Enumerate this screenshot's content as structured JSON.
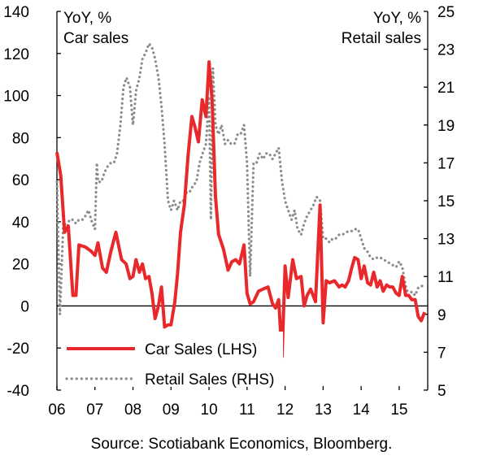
{
  "chart_data": {
    "type": "line",
    "left_axis_title_1": "YoY, %",
    "left_axis_title_2": "Car sales",
    "right_axis_title_1": "YoY, %",
    "right_axis_title_2": "Retail sales",
    "source": "Source: Scotiabank Economics, Bloomberg.",
    "x_tick_labels": [
      "06",
      "07",
      "08",
      "09",
      "10",
      "11",
      "12",
      "13",
      "14",
      "15"
    ],
    "xlim": [
      2006.0,
      2015.75
    ],
    "ylim_left": [
      -40,
      140
    ],
    "yticks_left": [
      -40,
      -20,
      0,
      20,
      40,
      60,
      80,
      100,
      120,
      140
    ],
    "ylim_right": [
      5,
      25
    ],
    "yticks_right": [
      5,
      7,
      9,
      11,
      13,
      15,
      17,
      19,
      21,
      23,
      25
    ],
    "legend_position": "bottom-left",
    "series": [
      {
        "name": "Car Sales (LHS)",
        "axis": "left",
        "color": "#e8282b",
        "style": "solid",
        "points": [
          [
            2006.0,
            73
          ],
          [
            2006.1,
            62
          ],
          [
            2006.2,
            35
          ],
          [
            2006.3,
            38
          ],
          [
            2006.42,
            5
          ],
          [
            2006.5,
            5
          ],
          [
            2006.58,
            29
          ],
          [
            2006.75,
            28
          ],
          [
            2006.9,
            26
          ],
          [
            2007.0,
            24
          ],
          [
            2007.08,
            30
          ],
          [
            2007.2,
            18
          ],
          [
            2007.3,
            16
          ],
          [
            2007.42,
            26
          ],
          [
            2007.55,
            35
          ],
          [
            2007.7,
            22
          ],
          [
            2007.82,
            20
          ],
          [
            2007.92,
            13
          ],
          [
            2008.0,
            14
          ],
          [
            2008.08,
            22
          ],
          [
            2008.17,
            16
          ],
          [
            2008.25,
            20
          ],
          [
            2008.33,
            13
          ],
          [
            2008.42,
            14
          ],
          [
            2008.5,
            6
          ],
          [
            2008.58,
            -6
          ],
          [
            2008.67,
            0
          ],
          [
            2008.75,
            9
          ],
          [
            2008.83,
            -10
          ],
          [
            2008.92,
            -9
          ],
          [
            2009.0,
            -9
          ],
          [
            2009.1,
            2
          ],
          [
            2009.17,
            15
          ],
          [
            2009.25,
            35
          ],
          [
            2009.35,
            48
          ],
          [
            2009.45,
            72
          ],
          [
            2009.55,
            90
          ],
          [
            2009.63,
            85
          ],
          [
            2009.72,
            78
          ],
          [
            2009.82,
            98
          ],
          [
            2009.92,
            90
          ],
          [
            2010.0,
            116
          ],
          [
            2010.08,
            98
          ],
          [
            2010.17,
            52
          ],
          [
            2010.25,
            34
          ],
          [
            2010.38,
            27
          ],
          [
            2010.5,
            17
          ],
          [
            2010.6,
            21
          ],
          [
            2010.7,
            22
          ],
          [
            2010.8,
            20
          ],
          [
            2010.92,
            29
          ],
          [
            2011.0,
            6
          ],
          [
            2011.08,
            1
          ],
          [
            2011.17,
            2
          ],
          [
            2011.3,
            7
          ],
          [
            2011.42,
            8
          ],
          [
            2011.55,
            9
          ],
          [
            2011.67,
            1
          ],
          [
            2011.75,
            -1
          ],
          [
            2011.83,
            3
          ],
          [
            2011.92,
            -24
          ],
          [
            2012.0,
            19
          ],
          [
            2012.08,
            4
          ],
          [
            2012.2,
            22
          ],
          [
            2012.3,
            13
          ],
          [
            2012.42,
            14
          ],
          [
            2012.5,
            0
          ],
          [
            2012.58,
            5
          ],
          [
            2012.67,
            8
          ],
          [
            2012.8,
            2
          ],
          [
            2012.92,
            48
          ],
          [
            2013.0,
            -8
          ],
          [
            2013.08,
            12
          ],
          [
            2013.17,
            11
          ],
          [
            2013.3,
            12
          ],
          [
            2013.42,
            9
          ],
          [
            2013.5,
            10
          ],
          [
            2013.58,
            9
          ],
          [
            2013.67,
            12
          ],
          [
            2013.75,
            18
          ],
          [
            2013.83,
            23
          ],
          [
            2013.92,
            22
          ],
          [
            2014.0,
            13
          ],
          [
            2014.08,
            19
          ],
          [
            2014.17,
            11
          ],
          [
            2014.25,
            10
          ],
          [
            2014.33,
            16
          ],
          [
            2014.42,
            9
          ],
          [
            2014.5,
            12
          ],
          [
            2014.58,
            7
          ],
          [
            2014.67,
            10
          ],
          [
            2014.75,
            9
          ],
          [
            2014.83,
            9
          ],
          [
            2014.92,
            6
          ],
          [
            2015.0,
            5
          ],
          [
            2015.08,
            14
          ],
          [
            2015.17,
            5
          ],
          [
            2015.25,
            5
          ],
          [
            2015.33,
            3
          ],
          [
            2015.42,
            3
          ],
          [
            2015.5,
            -5
          ],
          [
            2015.58,
            -7
          ],
          [
            2015.67,
            -3
          ]
        ]
      },
      {
        "name": "Retail Sales (RHS)",
        "axis": "right",
        "color": "#8c8c8c",
        "style": "dotted",
        "points": [
          [
            2006.0,
            16
          ],
          [
            2006.08,
            9
          ],
          [
            2006.17,
            14
          ],
          [
            2006.25,
            13.5
          ],
          [
            2006.33,
            14
          ],
          [
            2006.42,
            14
          ],
          [
            2006.5,
            13.8
          ],
          [
            2006.58,
            14
          ],
          [
            2006.67,
            14
          ],
          [
            2006.75,
            14.2
          ],
          [
            2006.83,
            14.5
          ],
          [
            2006.9,
            14
          ],
          [
            2007.0,
            13.5
          ],
          [
            2007.05,
            17
          ],
          [
            2007.08,
            16
          ],
          [
            2007.17,
            16
          ],
          [
            2007.25,
            16.5
          ],
          [
            2007.33,
            16.8
          ],
          [
            2007.42,
            17
          ],
          [
            2007.5,
            17
          ],
          [
            2007.58,
            17.5
          ],
          [
            2007.67,
            19
          ],
          [
            2007.75,
            21
          ],
          [
            2007.83,
            21.5
          ],
          [
            2007.92,
            21
          ],
          [
            2008.0,
            19
          ],
          [
            2008.08,
            20.8
          ],
          [
            2008.17,
            21.5
          ],
          [
            2008.25,
            22.5
          ],
          [
            2008.33,
            22.8
          ],
          [
            2008.42,
            23.3
          ],
          [
            2008.5,
            23.1
          ],
          [
            2008.58,
            22.5
          ],
          [
            2008.67,
            21.5
          ],
          [
            2008.75,
            20
          ],
          [
            2008.83,
            18
          ],
          [
            2008.92,
            15
          ],
          [
            2009.0,
            14.5
          ],
          [
            2009.08,
            15
          ],
          [
            2009.17,
            14.5
          ],
          [
            2009.25,
            15
          ],
          [
            2009.33,
            15
          ],
          [
            2009.42,
            15.5
          ],
          [
            2009.5,
            15.5
          ],
          [
            2009.58,
            15.8
          ],
          [
            2009.67,
            16
          ],
          [
            2009.75,
            17
          ],
          [
            2009.83,
            17.5
          ],
          [
            2009.92,
            18
          ],
          [
            2010.0,
            20.5
          ],
          [
            2010.05,
            14
          ],
          [
            2010.1,
            22
          ],
          [
            2010.17,
            19
          ],
          [
            2010.25,
            18.5
          ],
          [
            2010.33,
            19
          ],
          [
            2010.42,
            18
          ],
          [
            2010.5,
            18.2
          ],
          [
            2010.58,
            18
          ],
          [
            2010.67,
            18
          ],
          [
            2010.75,
            18.5
          ],
          [
            2010.83,
            18.5
          ],
          [
            2010.92,
            19
          ],
          [
            2011.0,
            17
          ],
          [
            2011.08,
            11
          ],
          [
            2011.17,
            17
          ],
          [
            2011.25,
            17
          ],
          [
            2011.33,
            17.5
          ],
          [
            2011.42,
            17.2
          ],
          [
            2011.5,
            17.5
          ],
          [
            2011.58,
            17.5
          ],
          [
            2011.67,
            17.2
          ],
          [
            2011.75,
            17.5
          ],
          [
            2011.83,
            17.8
          ],
          [
            2011.92,
            16
          ],
          [
            2012.0,
            15
          ],
          [
            2012.08,
            14.5
          ],
          [
            2012.17,
            14
          ],
          [
            2012.25,
            14.5
          ],
          [
            2012.33,
            13.5
          ],
          [
            2012.42,
            13.2
          ],
          [
            2012.5,
            13.8
          ],
          [
            2012.58,
            14.2
          ],
          [
            2012.67,
            14.5
          ],
          [
            2012.75,
            14.8
          ],
          [
            2012.83,
            15.2
          ],
          [
            2012.92,
            15
          ],
          [
            2013.0,
            13
          ],
          [
            2013.08,
            13
          ],
          [
            2013.17,
            12.8
          ],
          [
            2013.25,
            13
          ],
          [
            2013.33,
            13
          ],
          [
            2013.42,
            13.2
          ],
          [
            2013.5,
            13.2
          ],
          [
            2013.58,
            13.3
          ],
          [
            2013.67,
            13.4
          ],
          [
            2013.75,
            13.4
          ],
          [
            2013.83,
            13.5
          ],
          [
            2013.92,
            13.5
          ],
          [
            2014.0,
            13
          ],
          [
            2014.08,
            12.5
          ],
          [
            2014.17,
            12.3
          ],
          [
            2014.25,
            12
          ],
          [
            2014.33,
            11.9
          ],
          [
            2014.42,
            12
          ],
          [
            2014.5,
            12
          ],
          [
            2014.58,
            11.9
          ],
          [
            2014.67,
            11.8
          ],
          [
            2014.75,
            11.7
          ],
          [
            2014.83,
            11.6
          ],
          [
            2014.92,
            11.5
          ],
          [
            2015.0,
            11.8
          ],
          [
            2015.08,
            11.5
          ],
          [
            2015.17,
            10.5
          ],
          [
            2015.25,
            10
          ],
          [
            2015.33,
            10.2
          ],
          [
            2015.42,
            10
          ],
          [
            2015.5,
            10.4
          ],
          [
            2015.58,
            10.5
          ],
          [
            2015.67,
            10.5
          ]
        ]
      }
    ]
  }
}
